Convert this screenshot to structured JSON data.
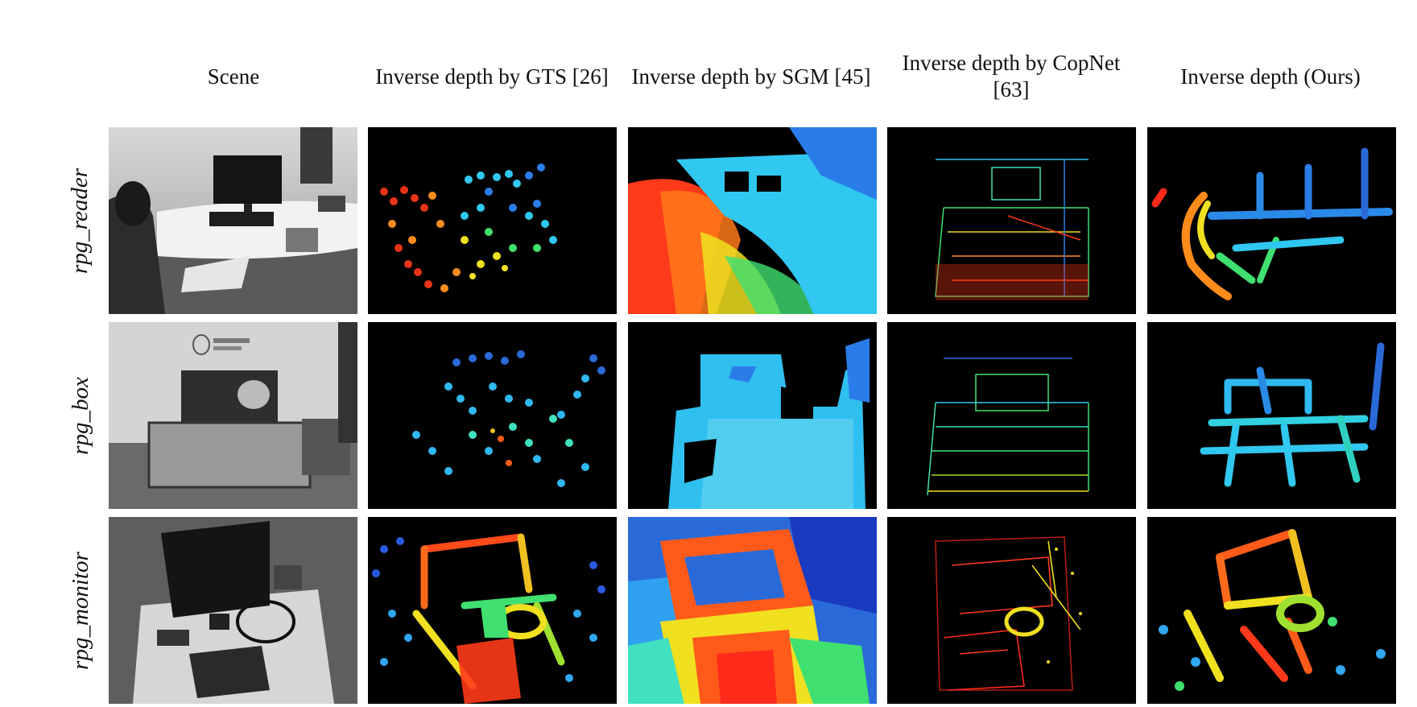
{
  "figure": {
    "column_headers": [
      "Scene",
      "Inverse depth by GTS [26]",
      "Inverse depth by SGM [45]",
      "Inverse depth by CopNet [63]",
      "Inverse depth (Ours)"
    ],
    "row_labels": [
      "rpg_reader",
      "rpg_box",
      "rpg_monitor"
    ]
  }
}
